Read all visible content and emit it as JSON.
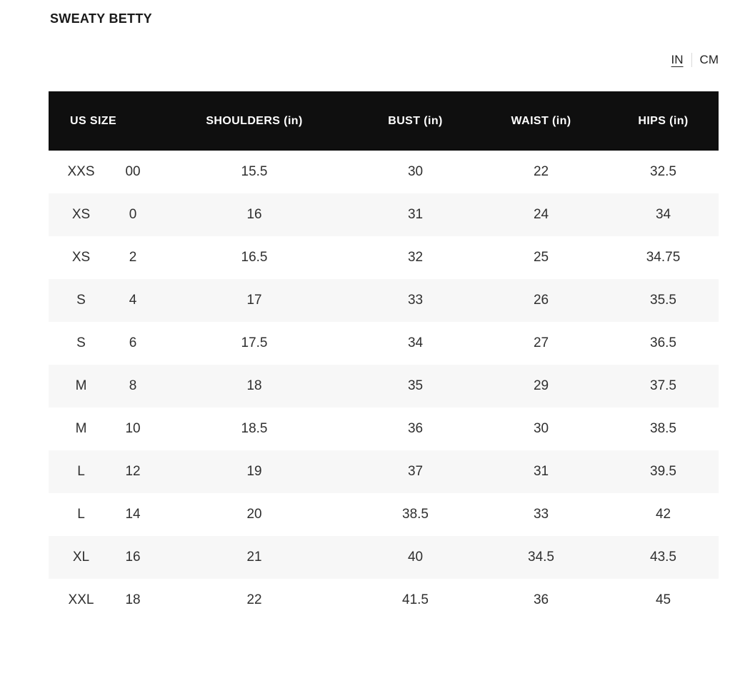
{
  "page": {
    "title": "SWEATY BETTY"
  },
  "unit_toggle": {
    "options": [
      {
        "label": "IN",
        "active": true
      },
      {
        "label": "CM",
        "active": false
      }
    ],
    "separator": "|"
  },
  "table": {
    "columns": {
      "us_size": "US SIZE",
      "shoulders": "SHOULDERS (in)",
      "bust": "BUST (in)",
      "waist": "WAIST (in)",
      "hips": "HIPS (in)"
    },
    "rows": [
      {
        "size_letter": "XXS",
        "size_number": "00",
        "shoulders": "15.5",
        "bust": "30",
        "waist": "22",
        "hips": "32.5"
      },
      {
        "size_letter": "XS",
        "size_number": "0",
        "shoulders": "16",
        "bust": "31",
        "waist": "24",
        "hips": "34"
      },
      {
        "size_letter": "XS",
        "size_number": "2",
        "shoulders": "16.5",
        "bust": "32",
        "waist": "25",
        "hips": "34.75"
      },
      {
        "size_letter": "S",
        "size_number": "4",
        "shoulders": "17",
        "bust": "33",
        "waist": "26",
        "hips": "35.5"
      },
      {
        "size_letter": "S",
        "size_number": "6",
        "shoulders": "17.5",
        "bust": "34",
        "waist": "27",
        "hips": "36.5"
      },
      {
        "size_letter": "M",
        "size_number": "8",
        "shoulders": "18",
        "bust": "35",
        "waist": "29",
        "hips": "37.5"
      },
      {
        "size_letter": "M",
        "size_number": "10",
        "shoulders": "18.5",
        "bust": "36",
        "waist": "30",
        "hips": "38.5"
      },
      {
        "size_letter": "L",
        "size_number": "12",
        "shoulders": "19",
        "bust": "37",
        "waist": "31",
        "hips": "39.5"
      },
      {
        "size_letter": "L",
        "size_number": "14",
        "shoulders": "20",
        "bust": "38.5",
        "waist": "33",
        "hips": "42"
      },
      {
        "size_letter": "XL",
        "size_number": "16",
        "shoulders": "21",
        "bust": "40",
        "waist": "34.5",
        "hips": "43.5"
      },
      {
        "size_letter": "XXL",
        "size_number": "18",
        "shoulders": "22",
        "bust": "41.5",
        "waist": "36",
        "hips": "45"
      }
    ]
  },
  "colors": {
    "header_bg": "#0f0f0f",
    "header_text": "#ffffff",
    "row_alt_bg": "#f7f7f7",
    "cell_text": "#2f2f2f",
    "separator": "#d9d9d9"
  }
}
